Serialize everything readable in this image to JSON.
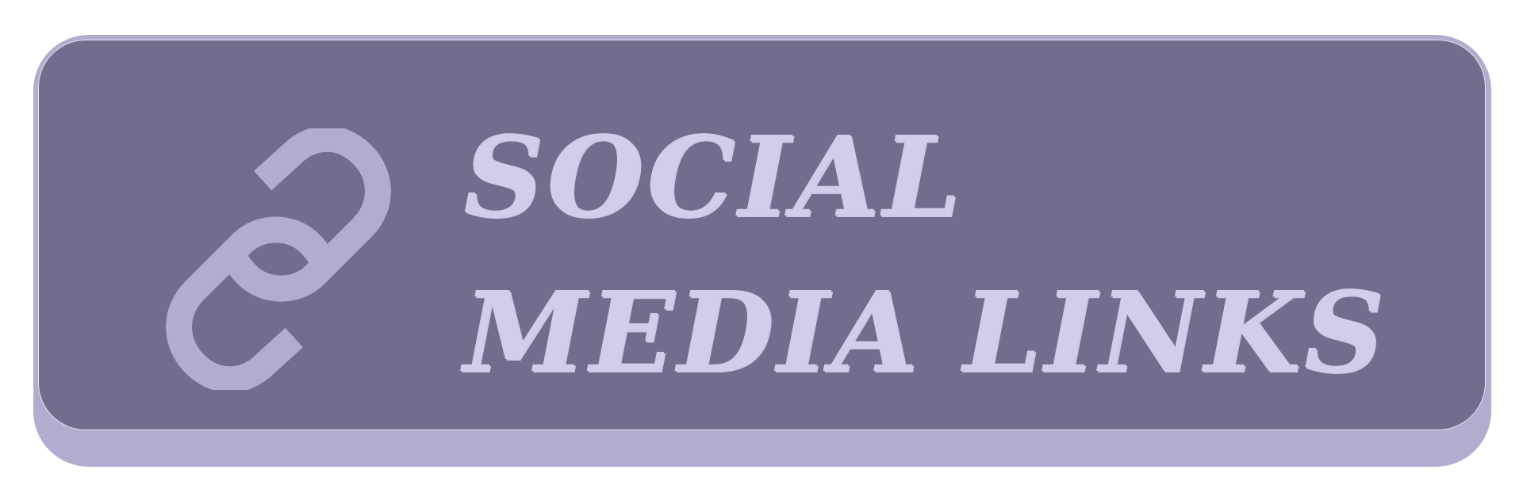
{
  "button": {
    "label_line1": "SOCIAL",
    "label_line2": "MEDIA LINKS",
    "icon": "chain-link-icon",
    "colors": {
      "face": "#736c8c",
      "shadow": "#b4acce",
      "text": "#d3cdea",
      "icon": "#b4acce"
    }
  }
}
